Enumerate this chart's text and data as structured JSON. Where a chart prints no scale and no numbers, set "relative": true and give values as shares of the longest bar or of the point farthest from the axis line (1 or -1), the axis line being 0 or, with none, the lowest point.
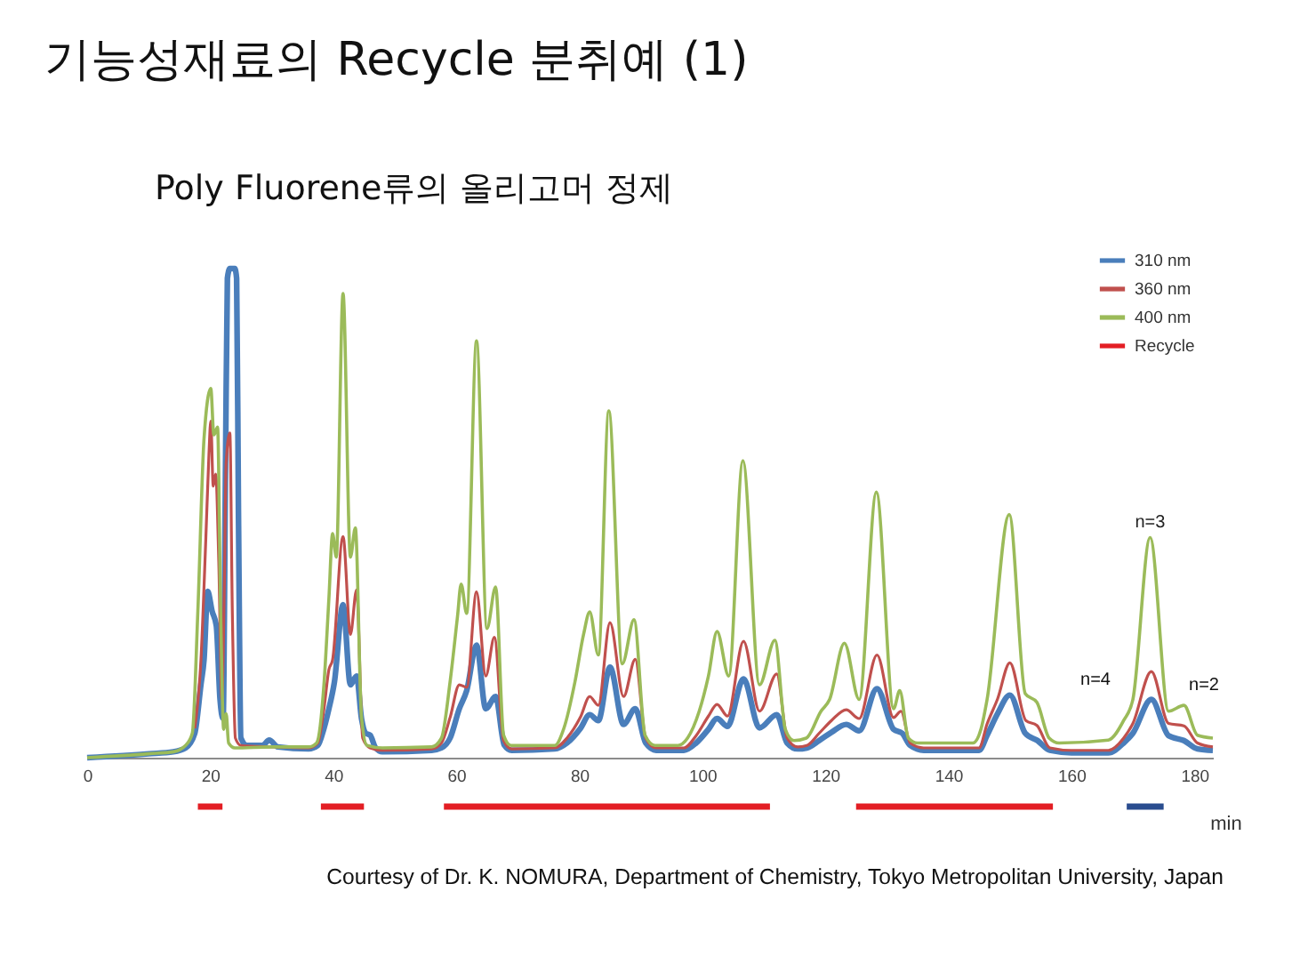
{
  "chart_data": {
    "type": "line",
    "title": "기능성재료의 Recycle 분취예 (1)",
    "subtitle": "Poly Fluorene류의 올리고머 정제",
    "xlabel": "min",
    "relative": true,
    "xlim": [
      0,
      183
    ],
    "xticks": [
      0,
      20,
      40,
      60,
      80,
      100,
      120,
      140,
      160,
      180
    ],
    "legend": "top right",
    "series": [
      {
        "name": "310 nm",
        "color": "#4a7ebb",
        "x": [
          0,
          10,
          14,
          16,
          17.5,
          18.5,
          19.0,
          19.6,
          20.3,
          21.0,
          21.6,
          22.1,
          22.5,
          22.8,
          23.2,
          24.0,
          24.3,
          24.6,
          25.0,
          26,
          28.5,
          29.6,
          31,
          36,
          37.5,
          38.5,
          39.3,
          40.2,
          41.6,
          42.8,
          43.8,
          44.6,
          45.3,
          46.0,
          46.9,
          48,
          56,
          57.6,
          59.0,
          60.5,
          61.7,
          63.3,
          64.8,
          66.4,
          67.8,
          69,
          76,
          78,
          80.2,
          81.7,
          83.1,
          85.0,
          87.2,
          89.1,
          90.8,
          92.5,
          97,
          99,
          101.0,
          102.4,
          104.1,
          106.7,
          109.3,
          112.1,
          113.8,
          115.5,
          117,
          119,
          121,
          123.4,
          125.5,
          128.4,
          131.1,
          132.5,
          133.8,
          136,
          145,
          146.3,
          148,
          150.0,
          152.5,
          154.5,
          156.5,
          160,
          166,
          168.5,
          170,
          173,
          175.8,
          178.3,
          180.5,
          183
        ],
        "values": [
          0,
          0.008,
          0.012,
          0.02,
          0.05,
          0.15,
          0.2,
          0.34,
          0.3,
          0.27,
          0.12,
          0.08,
          0.6,
          0.98,
          1,
          1,
          0.98,
          0.5,
          0.04,
          0.025,
          0.025,
          0.036,
          0.022,
          0.018,
          0.025,
          0.06,
          0.1,
          0.155,
          0.313,
          0.149,
          0.167,
          0.08,
          0.05,
          0.046,
          0.02,
          0.012,
          0.015,
          0.02,
          0.04,
          0.1,
          0.137,
          0.23,
          0.1,
          0.125,
          0.026,
          0.015,
          0.018,
          0.03,
          0.06,
          0.088,
          0.076,
          0.185,
          0.068,
          0.1,
          0.03,
          0.015,
          0.015,
          0.03,
          0.058,
          0.08,
          0.064,
          0.161,
          0.061,
          0.088,
          0.03,
          0.018,
          0.02,
          0.035,
          0.052,
          0.068,
          0.055,
          0.141,
          0.058,
          0.05,
          0.025,
          0.015,
          0.015,
          0.046,
          0.09,
          0.128,
          0.05,
          0.035,
          0.015,
          0.01,
          0.01,
          0.03,
          0.05,
          0.119,
          0.045,
          0.035,
          0.018,
          0.015
        ]
      },
      {
        "name": "360 nm",
        "color": "#c0504d",
        "x": [
          17.5,
          18.5,
          19.3,
          19.8,
          20.1,
          20.5,
          20.9,
          21.4,
          21.9,
          22.3,
          22.6,
          23.2,
          23.6,
          24.1,
          25,
          30,
          36,
          37.5,
          38.5,
          39.3,
          39.9,
          41.6,
          42.8,
          43.8,
          44.8,
          46,
          48,
          56,
          57.6,
          59.0,
          60.5,
          61.7,
          63.3,
          64.8,
          66.2,
          67.7,
          69,
          76,
          78,
          80.2,
          81.7,
          83.1,
          85.0,
          87.2,
          89.1,
          90.8,
          92.5,
          97,
          99,
          101.0,
          102.4,
          104.1,
          106.7,
          109.3,
          112.1,
          113.8,
          115.5,
          117,
          119,
          121,
          123.4,
          125.5,
          128.4,
          131.1,
          132.3,
          133.8,
          136,
          145,
          146.3,
          148,
          150.0,
          152.6,
          154.4,
          156.5,
          160,
          166,
          168.5,
          170,
          173,
          175.8,
          178.3,
          180.5,
          183
        ],
        "values": [
          0.06,
          0.2,
          0.45,
          0.62,
          0.688,
          0.555,
          0.58,
          0.4,
          0.12,
          0.35,
          0.604,
          0.664,
          0.3,
          0.04,
          0.025,
          0.022,
          0.02,
          0.03,
          0.1,
          0.18,
          0.2,
          0.452,
          0.252,
          0.343,
          0.04,
          0.02,
          0.015,
          0.018,
          0.03,
          0.082,
          0.149,
          0.144,
          0.339,
          0.167,
          0.246,
          0.035,
          0.018,
          0.02,
          0.04,
          0.083,
          0.125,
          0.107,
          0.276,
          0.125,
          0.201,
          0.04,
          0.02,
          0.02,
          0.045,
          0.085,
          0.109,
          0.085,
          0.238,
          0.095,
          0.171,
          0.04,
          0.022,
          0.025,
          0.05,
          0.076,
          0.098,
          0.08,
          0.21,
          0.082,
          0.095,
          0.03,
          0.02,
          0.02,
          0.069,
          0.12,
          0.194,
          0.076,
          0.066,
          0.02,
          0.015,
          0.015,
          0.04,
          0.07,
          0.176,
          0.07,
          0.065,
          0.03,
          0.022
        ]
      },
      {
        "name": "400 nm",
        "color": "#9bbb59",
        "x": [
          0,
          10,
          14,
          16,
          17.1,
          18.0,
          19.0,
          20.1,
          20.6,
          21.2,
          21.7,
          22.2,
          22.6,
          23.0,
          24,
          30,
          36,
          37.3,
          38.5,
          39.3,
          39.9,
          40.5,
          41.6,
          42.8,
          43.6,
          44.6,
          45.5,
          48,
          56,
          57.6,
          59.0,
          60.2,
          60.8,
          61.7,
          63.3,
          65.0,
          66.4,
          67.7,
          68.9,
          76,
          77.5,
          79.3,
          80.7,
          81.7,
          83.1,
          84.8,
          87.0,
          88.9,
          90.7,
          92.3,
          96,
          97.6,
          99.5,
          101.0,
          102.4,
          104.3,
          106.6,
          109.3,
          111.8,
          113.5,
          114.9,
          116.9,
          119.3,
          120.7,
          123.1,
          125.5,
          128.3,
          131.1,
          132.1,
          133.5,
          135,
          144,
          145.3,
          146.3,
          149.9,
          152.5,
          154.4,
          156.4,
          158,
          166,
          168.5,
          170,
          172.8,
          175.8,
          178.3,
          180.5,
          183
        ],
        "values": [
          0,
          0.008,
          0.012,
          0.025,
          0.05,
          0.3,
          0.652,
          0.755,
          0.66,
          0.676,
          0.3,
          0.058,
          0.09,
          0.03,
          0.02,
          0.022,
          0.022,
          0.03,
          0.15,
          0.325,
          0.458,
          0.41,
          0.949,
          0.41,
          0.47,
          0.083,
          0.025,
          0.02,
          0.022,
          0.04,
          0.155,
          0.288,
          0.355,
          0.295,
          0.852,
          0.264,
          0.349,
          0.046,
          0.025,
          0.025,
          0.06,
          0.155,
          0.252,
          0.298,
          0.21,
          0.709,
          0.192,
          0.282,
          0.046,
          0.025,
          0.025,
          0.04,
          0.095,
          0.167,
          0.258,
          0.167,
          0.607,
          0.149,
          0.24,
          0.058,
          0.035,
          0.04,
          0.095,
          0.119,
          0.234,
          0.119,
          0.543,
          0.1,
          0.137,
          0.04,
          0.03,
          0.03,
          0.058,
          0.119,
          0.497,
          0.131,
          0.113,
          0.04,
          0.03,
          0.036,
          0.076,
          0.119,
          0.45,
          0.095,
          0.107,
          0.046,
          0.04
        ]
      },
      {
        "name": "Recycle",
        "color": "#e31e24",
        "x": [
          18,
          22,
          30,
          38,
          45,
          50,
          58,
          111,
          118,
          125,
          157
        ],
        "values": [
          -0.1,
          -0.1,
          null,
          -0.1,
          -0.1,
          null,
          -0.1,
          -0.1,
          null,
          -0.1,
          -0.1
        ]
      },
      {
        "color": "#2a4d8f",
        "x": [
          169,
          175
        ],
        "values": [
          -0.1,
          -0.1
        ]
      }
    ],
    "annotations": [
      {
        "text": "n=3",
        "x": 172.8,
        "y": 0.45
      },
      "n=4",
      "n=2",
      "Courtesy of Dr. K. NOMURA, Department of Chemistry, Tokyo Metropolitan University, Japan"
    ]
  }
}
